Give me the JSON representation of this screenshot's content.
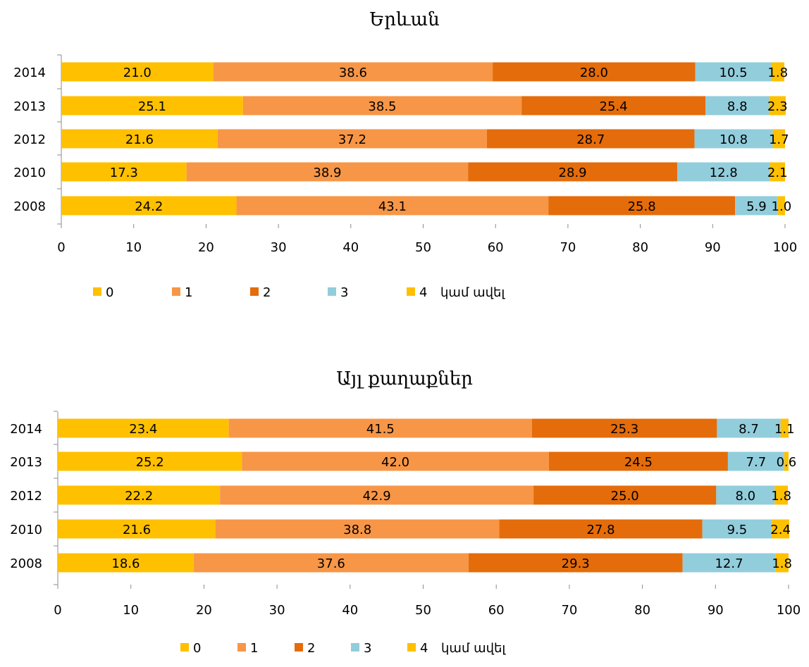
{
  "chart_data": [
    {
      "type": "bar",
      "orientation": "horizontal",
      "stacked": true,
      "title": "Երևան",
      "categories": [
        "2014",
        "2013",
        "2012",
        "2010",
        "2008"
      ],
      "series": [
        {
          "name": "0",
          "color": "#FFC000",
          "values": [
            21.0,
            25.1,
            21.6,
            17.3,
            24.2
          ]
        },
        {
          "name": "1",
          "color": "#F79646",
          "values": [
            38.6,
            38.5,
            37.2,
            38.9,
            43.1
          ]
        },
        {
          "name": "2",
          "color": "#E46C0A",
          "values": [
            28.0,
            25.4,
            28.7,
            28.9,
            25.8
          ]
        },
        {
          "name": "3",
          "color": "#92CDDC",
          "values": [
            10.5,
            8.8,
            10.8,
            12.8,
            5.9
          ]
        },
        {
          "name": "4",
          "color": "#FFC000",
          "values": [
            1.8,
            2.3,
            1.7,
            2.1,
            1.0
          ]
        }
      ],
      "legend_suffix": "կամ ավել",
      "xlim": [
        0,
        100
      ],
      "xticks": [
        "0",
        "10",
        "20",
        "30",
        "40",
        "50",
        "60",
        "70",
        "80",
        "90",
        "100"
      ],
      "grid": false,
      "legend_position": "bottom"
    },
    {
      "type": "bar",
      "orientation": "horizontal",
      "stacked": true,
      "title": "Այլ քաղաքներ",
      "categories": [
        "2014",
        "2013",
        "2012",
        "2010",
        "2008"
      ],
      "series": [
        {
          "name": "0",
          "color": "#FFC000",
          "values": [
            23.4,
            25.2,
            22.2,
            21.6,
            18.6
          ]
        },
        {
          "name": "1",
          "color": "#F79646",
          "values": [
            41.5,
            42.0,
            42.9,
            38.8,
            37.6
          ]
        },
        {
          "name": "2",
          "color": "#E46C0A",
          "values": [
            25.3,
            24.5,
            25.0,
            27.8,
            29.3
          ]
        },
        {
          "name": "3",
          "color": "#92CDDC",
          "values": [
            8.7,
            7.7,
            8.0,
            9.5,
            12.7
          ]
        },
        {
          "name": "4",
          "color": "#FFC000",
          "values": [
            1.1,
            0.6,
            1.8,
            2.4,
            1.8
          ]
        }
      ],
      "legend_suffix": "կամ ավել",
      "xlim": [
        0,
        100
      ],
      "xticks": [
        "0",
        "10",
        "20",
        "30",
        "40",
        "50",
        "60",
        "70",
        "80",
        "90",
        "100"
      ],
      "grid": false,
      "legend_position": "bottom"
    }
  ]
}
